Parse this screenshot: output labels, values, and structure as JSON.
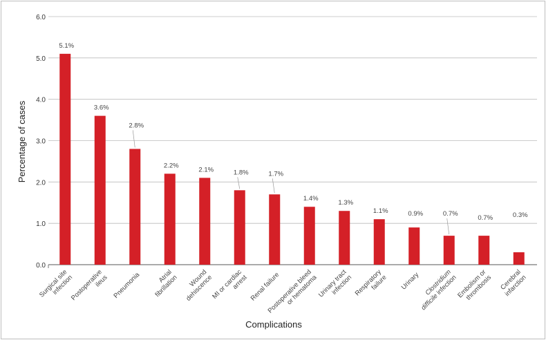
{
  "chart_data": {
    "type": "bar",
    "title": "",
    "xlabel": "Complications",
    "ylabel": "Percentage of cases",
    "ylim": [
      0,
      6.0
    ],
    "yticks": [
      "0.0",
      "1.0",
      "2.0",
      "3.0",
      "4.0",
      "5.0",
      "6.0"
    ],
    "grid": true,
    "bar_color": "#d42027",
    "categories": [
      [
        "Surgical site",
        "infection"
      ],
      [
        "Postoperative",
        "ileus"
      ],
      [
        "Pneumonia"
      ],
      [
        "Atrial",
        "fibrillation"
      ],
      [
        "Wound",
        "dehiscence"
      ],
      [
        "MI or cardiac",
        "arrest"
      ],
      [
        "Renal failure"
      ],
      [
        "Postoperative bleed",
        "or hematoma"
      ],
      [
        "Urinary tract",
        "infection"
      ],
      [
        "Respiratory",
        "failure"
      ],
      [
        "Urinary"
      ],
      [
        "Clostridium",
        "difficile infection"
      ],
      [
        "Embolism or",
        "thrombosis"
      ],
      [
        "Cerebral",
        "infarction"
      ]
    ],
    "values": [
      5.1,
      3.6,
      2.8,
      2.2,
      2.1,
      1.8,
      1.7,
      1.4,
      1.3,
      1.1,
      0.9,
      0.7,
      0.7,
      0.3
    ],
    "data_labels": [
      "5.1%",
      "3.6%",
      "2.8%",
      "2.2%",
      "2.1%",
      "1.8%",
      "1.7%",
      "1.4%",
      "1.3%",
      "1.1%",
      "0.9%",
      "0.7%",
      "0.7%",
      "0.3%"
    ]
  }
}
